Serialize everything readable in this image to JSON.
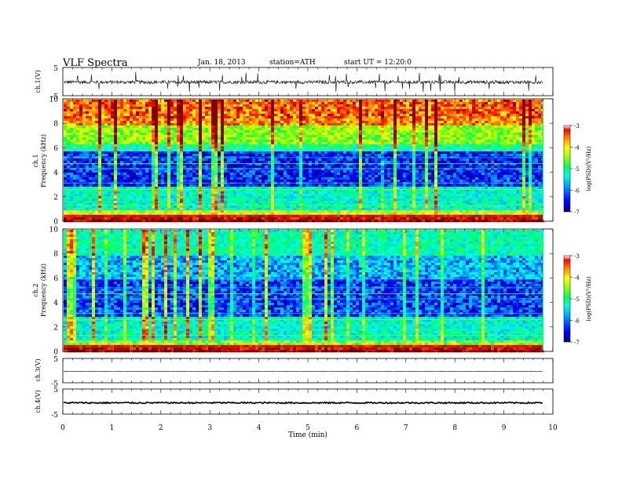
{
  "header": {
    "title": "VLF Spectra",
    "date": "Jan. 18, 2013",
    "station": "station=ATH",
    "start": "start UT = 12:20:0"
  },
  "chart_data": [
    {
      "type": "line",
      "name": "ch1_waveform",
      "ylabel": "ch.1(V)",
      "ylim": [
        -5,
        5
      ],
      "y_ticks": [
        "5",
        "-5"
      ],
      "xlim": [
        0,
        10
      ],
      "baseline_v": -0.2,
      "noise_amplitude_v": 0.6,
      "spike_amplitude_v": 3.5,
      "data_end_min": 9.8
    },
    {
      "type": "heatmap",
      "name": "ch1_spectrogram",
      "ylabel": "ch.1\nFrequency (kHz)",
      "ylabel_line1": "ch.1",
      "ylabel_line2": "Frequency (kHz)",
      "ylim": [
        0,
        10
      ],
      "y_ticks": [
        "0",
        "2",
        "4",
        "6",
        "8",
        "10"
      ],
      "xlim": [
        0,
        10
      ],
      "data_end_min": 9.8,
      "colorbar": {
        "label": "log(PSD)(V²/Hz)",
        "range": [
          -7,
          -3
        ],
        "ticks": [
          "-3",
          "-4",
          "-5",
          "-6",
          "-7"
        ]
      },
      "band_levels_logPSD": [
        {
          "f_khz": [
            0,
            0.6
          ],
          "level": -3.3
        },
        {
          "f_khz": [
            0.6,
            1.0
          ],
          "level": -4.6
        },
        {
          "f_khz": [
            1.0,
            3.0
          ],
          "level": -5.6
        },
        {
          "f_khz": [
            3.0,
            5.8
          ],
          "level": -6.5
        },
        {
          "f_khz": [
            5.8,
            6.4
          ],
          "level": -5.4
        },
        {
          "f_khz": [
            6.4,
            8.0
          ],
          "level": -4.8
        },
        {
          "f_khz": [
            8.0,
            10.0
          ],
          "level": -3.9
        }
      ]
    },
    {
      "type": "heatmap",
      "name": "ch2_spectrogram",
      "ylabel": "ch.2\nFrequency (kHz)",
      "ylabel_line1": "ch.2",
      "ylabel_line2": "Frequency (kHz)",
      "ylim": [
        0,
        10
      ],
      "y_ticks": [
        "0",
        "2",
        "4",
        "6",
        "8",
        "10"
      ],
      "xlim": [
        0,
        10
      ],
      "data_end_min": 9.8,
      "colorbar": {
        "label": "log(PSD)(V²/Hz)",
        "range": [
          -7,
          -3
        ],
        "ticks": [
          "-3",
          "-4",
          "-5",
          "-6",
          "-7"
        ]
      },
      "band_levels_logPSD": [
        {
          "f_khz": [
            0,
            0.6
          ],
          "level": -3.3
        },
        {
          "f_khz": [
            0.6,
            1.0
          ],
          "level": -4.8
        },
        {
          "f_khz": [
            1.0,
            3.0
          ],
          "level": -5.6
        },
        {
          "f_khz": [
            3.0,
            6.0
          ],
          "level": -6.4
        },
        {
          "f_khz": [
            6.0,
            8.0
          ],
          "level": -6.0
        },
        {
          "f_khz": [
            8.0,
            10.0
          ],
          "level": -5.5
        }
      ]
    },
    {
      "type": "line",
      "name": "ch3_waveform",
      "ylabel": "ch.3(V)",
      "ylim": [
        -5,
        5
      ],
      "y_ticks": [
        "5",
        "-5"
      ],
      "xlim": [
        0,
        10
      ],
      "baseline_v": -0.3,
      "noise_amplitude_v": 0.05,
      "data_end_min": 9.8
    },
    {
      "type": "line",
      "name": "ch4_waveform",
      "ylabel": "ch.4(V)",
      "ylim": [
        -5,
        5
      ],
      "y_ticks": [
        "5",
        "-5"
      ],
      "xlim": [
        0,
        10
      ],
      "baseline_v": -0.5,
      "noise_amplitude_v": 0.3,
      "data_end_min": 9.8
    }
  ],
  "xaxis": {
    "label": "Time (min)",
    "ticks": [
      "0",
      "1",
      "2",
      "3",
      "4",
      "5",
      "6",
      "7",
      "8",
      "9",
      "10"
    ]
  },
  "colors": {
    "colormap": [
      "#000080",
      "#0000ff",
      "#00a0ff",
      "#00ffe0",
      "#00ff60",
      "#a0ff00",
      "#ffff00",
      "#ff8000",
      "#ff0000",
      "#800000"
    ],
    "trace": "#000000"
  }
}
